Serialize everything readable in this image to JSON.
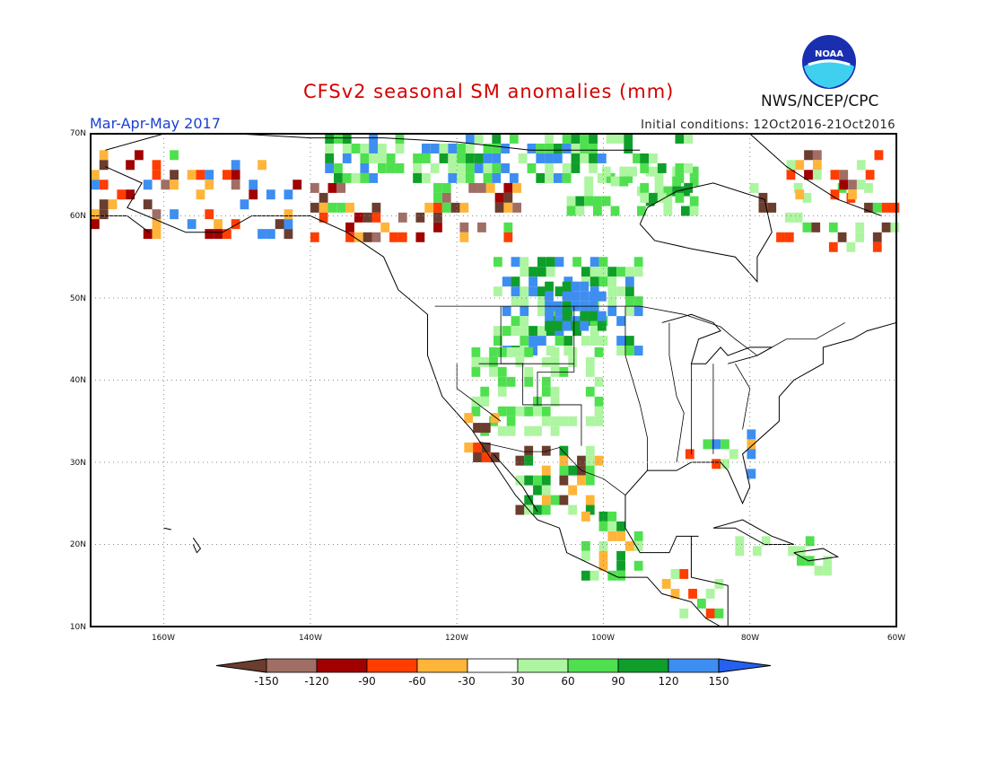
{
  "header": {
    "title": "CFSv2 seasonal SM anomalies (mm)",
    "period": "Mar-Apr-May 2017",
    "initial_conditions": "Initial conditions: 12Oct2016-21Oct2016",
    "agency": "NWS/NCEP/CPC",
    "logo_text": "NOAA"
  },
  "map": {
    "lat_labels": [
      "70N",
      "60N",
      "50N",
      "40N",
      "30N",
      "20N",
      "10N"
    ],
    "lon_labels": [
      "160W",
      "140W",
      "120W",
      "100W",
      "80W",
      "60W"
    ],
    "extent": {
      "lon_min": -170,
      "lon_max": -60,
      "lat_min": 10,
      "lat_max": 70
    }
  },
  "colorbar": {
    "labels": [
      "-150",
      "-120",
      "-90",
      "-60",
      "-30",
      "30",
      "60",
      "90",
      "120",
      "150"
    ],
    "colors": [
      "#6b3d2e",
      "#a06e64",
      "#a00000",
      "#ff3d00",
      "#ffb43a",
      "#ffffff",
      "#adf5a0",
      "#4fe04f",
      "#0f9e2a",
      "#3d8ef0",
      "#2560f0"
    ]
  },
  "anomaly_colors": {
    "dry_brown": "#6b3d2e",
    "dry_taupe": "#a06e64",
    "dry_darkred": "#a00000",
    "dry_red": "#ff3d00",
    "dry_orange": "#ffb43a",
    "wet_light": "#adf5a0",
    "wet_green": "#4fe04f",
    "wet_dark": "#0f9e2a",
    "wet_blue": "#3d8ef0"
  }
}
